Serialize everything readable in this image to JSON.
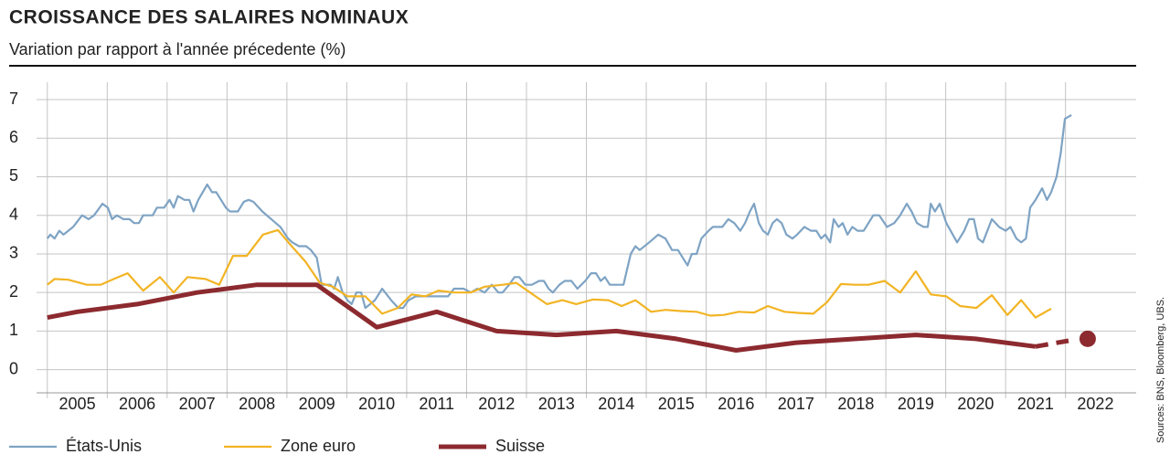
{
  "chart_data": {
    "type": "line",
    "title": "CROISSANCE DES SALAIRES NOMINAUX",
    "subtitle": "Variation par rapport à l'année précedente (%)",
    "source": "Sources: BNS, Bloomberg, UBS.",
    "xlim": [
      2004.82,
      2023.18
    ],
    "xticks": [
      2005,
      2006,
      2007,
      2008,
      2009,
      2010,
      2011,
      2012,
      2013,
      2014,
      2015,
      2016,
      2017,
      2018,
      2019,
      2020,
      2021,
      2022
    ],
    "ylim": [
      -0.6,
      7.45
    ],
    "yticks": [
      0,
      1,
      2,
      3,
      4,
      5,
      6,
      7
    ],
    "grid": true,
    "legend": "bottom",
    "series": [
      {
        "name": "États-Unis",
        "color": "#7ea3c4",
        "width": 2.2,
        "x": [
          2005.0,
          2005.05,
          2005.12,
          2005.2,
          2005.27,
          2005.43,
          2005.58,
          2005.69,
          2005.78,
          2005.92,
          2006.01,
          2006.08,
          2006.16,
          2006.27,
          2006.37,
          2006.45,
          2006.53,
          2006.6,
          2006.76,
          2006.83,
          2006.95,
          2007.04,
          2007.11,
          2007.18,
          2007.29,
          2007.37,
          2007.44,
          2007.52,
          2007.67,
          2007.75,
          2007.82,
          2007.98,
          2008.05,
          2008.18,
          2008.28,
          2008.36,
          2008.44,
          2008.59,
          2008.74,
          2008.89,
          2009.02,
          2009.09,
          2009.2,
          2009.32,
          2009.4,
          2009.5,
          2009.58,
          2009.73,
          2009.79,
          2009.85,
          2009.93,
          2010.01,
          2010.08,
          2010.16,
          2010.24,
          2010.31,
          2010.39,
          2010.47,
          2010.59,
          2010.74,
          2010.86,
          2010.94,
          2011.03,
          2011.15,
          2011.31,
          2011.53,
          2011.69,
          2011.79,
          2011.95,
          2012.07,
          2012.18,
          2012.3,
          2012.42,
          2012.53,
          2012.6,
          2012.71,
          2012.8,
          2012.88,
          2012.98,
          2013.09,
          2013.21,
          2013.29,
          2013.37,
          2013.44,
          2013.55,
          2013.64,
          2013.75,
          2013.85,
          2013.98,
          2014.08,
          2014.16,
          2014.24,
          2014.31,
          2014.39,
          2014.54,
          2014.62,
          2014.74,
          2014.82,
          2014.89,
          2015.05,
          2015.2,
          2015.32,
          2015.43,
          2015.53,
          2015.69,
          2015.76,
          2015.84,
          2015.92,
          2016.04,
          2016.11,
          2016.27,
          2016.37,
          2016.47,
          2016.57,
          2016.65,
          2016.73,
          2016.8,
          2016.88,
          2016.95,
          2017.03,
          2017.11,
          2017.18,
          2017.26,
          2017.34,
          2017.44,
          2017.52,
          2017.64,
          2017.75,
          2017.84,
          2017.92,
          2017.99,
          2018.07,
          2018.13,
          2018.21,
          2018.28,
          2018.36,
          2018.44,
          2018.53,
          2018.63,
          2018.79,
          2018.89,
          2019.02,
          2019.14,
          2019.24,
          2019.35,
          2019.43,
          2019.52,
          2019.63,
          2019.7,
          2019.75,
          2019.82,
          2019.9,
          2020.01,
          2020.19,
          2020.31,
          2020.39,
          2020.47,
          2020.54,
          2020.62,
          2020.77,
          2020.89,
          2021.0,
          2021.08,
          2021.18,
          2021.26,
          2021.34,
          2021.41,
          2021.5,
          2021.61,
          2021.69,
          2021.76,
          2021.85,
          2021.92,
          2021.99,
          2022.1
        ],
        "values": [
          3.4,
          3.5,
          3.4,
          3.6,
          3.5,
          3.7,
          4.0,
          3.9,
          4.0,
          4.3,
          4.2,
          3.9,
          4.0,
          3.9,
          3.9,
          3.8,
          3.8,
          4.0,
          4.0,
          4.2,
          4.2,
          4.4,
          4.2,
          4.5,
          4.4,
          4.4,
          4.1,
          4.4,
          4.8,
          4.6,
          4.6,
          4.2,
          4.1,
          4.1,
          4.35,
          4.4,
          4.35,
          4.1,
          3.9,
          3.7,
          3.4,
          3.3,
          3.2,
          3.2,
          3.1,
          2.9,
          2.2,
          2.2,
          2.1,
          2.4,
          2.0,
          1.8,
          1.7,
          2.0,
          2.0,
          1.6,
          1.7,
          1.8,
          2.1,
          1.8,
          1.6,
          1.6,
          1.8,
          1.9,
          1.9,
          1.9,
          1.9,
          2.1,
          2.1,
          2.0,
          2.1,
          2.0,
          2.2,
          2.0,
          2.0,
          2.2,
          2.4,
          2.4,
          2.2,
          2.2,
          2.3,
          2.3,
          2.1,
          2.0,
          2.2,
          2.3,
          2.3,
          2.1,
          2.3,
          2.5,
          2.5,
          2.3,
          2.4,
          2.2,
          2.2,
          2.2,
          3.0,
          3.2,
          3.1,
          3.3,
          3.5,
          3.4,
          3.1,
          3.1,
          2.7,
          3.0,
          3.0,
          3.4,
          3.6,
          3.7,
          3.7,
          3.9,
          3.8,
          3.6,
          3.8,
          4.1,
          4.3,
          3.8,
          3.6,
          3.5,
          3.8,
          3.9,
          3.8,
          3.5,
          3.4,
          3.5,
          3.7,
          3.6,
          3.6,
          3.4,
          3.5,
          3.3,
          3.9,
          3.7,
          3.8,
          3.5,
          3.7,
          3.6,
          3.6,
          4.0,
          4.0,
          3.7,
          3.8,
          4.0,
          4.3,
          4.1,
          3.8,
          3.7,
          3.7,
          4.3,
          4.1,
          4.3,
          3.8,
          3.3,
          3.6,
          3.9,
          3.9,
          3.4,
          3.3,
          3.9,
          3.7,
          3.6,
          3.7,
          3.4,
          3.3,
          3.4,
          4.2,
          4.4,
          4.7,
          4.4,
          4.6,
          5.0,
          5.6,
          6.5,
          6.6
        ]
      },
      {
        "name": "Zone euro",
        "color": "#f2b424",
        "width": 2.2,
        "x": [
          2005.0,
          2005.12,
          2005.35,
          2005.66,
          2005.89,
          2006.11,
          2006.34,
          2006.6,
          2006.88,
          2007.11,
          2007.34,
          2007.64,
          2007.87,
          2008.1,
          2008.33,
          2008.6,
          2008.85,
          2009.08,
          2009.31,
          2009.55,
          2009.77,
          2010.01,
          2010.31,
          2010.59,
          2010.85,
          2011.08,
          2011.31,
          2011.53,
          2011.79,
          2012.07,
          2012.3,
          2012.6,
          2012.83,
          2013.06,
          2013.34,
          2013.6,
          2013.83,
          2014.11,
          2014.37,
          2014.59,
          2014.82,
          2015.08,
          2015.32,
          2015.58,
          2015.84,
          2016.07,
          2016.3,
          2016.54,
          2016.8,
          2017.03,
          2017.31,
          2017.56,
          2017.79,
          2018.02,
          2018.25,
          2018.48,
          2018.71,
          2018.98,
          2019.24,
          2019.5,
          2019.75,
          2020.01,
          2020.24,
          2020.51,
          2020.77,
          2021.03,
          2021.26,
          2021.5,
          2021.76
        ],
        "values": [
          2.2,
          2.35,
          2.33,
          2.2,
          2.2,
          2.35,
          2.5,
          2.05,
          2.4,
          2.0,
          2.4,
          2.35,
          2.2,
          2.95,
          2.95,
          3.5,
          3.62,
          3.2,
          2.8,
          2.25,
          2.15,
          1.9,
          1.9,
          1.45,
          1.6,
          1.95,
          1.9,
          2.05,
          2.0,
          2.0,
          2.15,
          2.2,
          2.25,
          2.0,
          1.7,
          1.8,
          1.7,
          1.82,
          1.8,
          1.65,
          1.8,
          1.5,
          1.55,
          1.52,
          1.5,
          1.4,
          1.42,
          1.5,
          1.48,
          1.65,
          1.5,
          1.47,
          1.45,
          1.75,
          2.22,
          2.2,
          2.2,
          2.3,
          2.0,
          2.55,
          1.95,
          1.9,
          1.65,
          1.6,
          1.93,
          1.42,
          1.8,
          1.35,
          1.58
        ]
      },
      {
        "name": "Suisse",
        "color": "#8c2a2f",
        "width": 5,
        "x": [
          2005.0,
          2005.5,
          2006.5,
          2007.5,
          2008.5,
          2009.5,
          2010.5,
          2011.5,
          2012.5,
          2013.5,
          2014.5,
          2015.5,
          2016.5,
          2017.5,
          2018.5,
          2019.5,
          2020.5,
          2021.5
        ],
        "values": [
          1.35,
          1.5,
          1.7,
          2.0,
          2.2,
          2.2,
          1.1,
          1.5,
          1.0,
          0.9,
          1.0,
          0.8,
          0.5,
          0.7,
          0.8,
          0.9,
          0.8,
          0.6
        ],
        "dashed_x": [
          2021.5,
          2022.05
        ],
        "dashed_values": [
          0.6,
          0.75
        ],
        "point_x": 2022.37,
        "point_value": 0.8
      }
    ]
  }
}
